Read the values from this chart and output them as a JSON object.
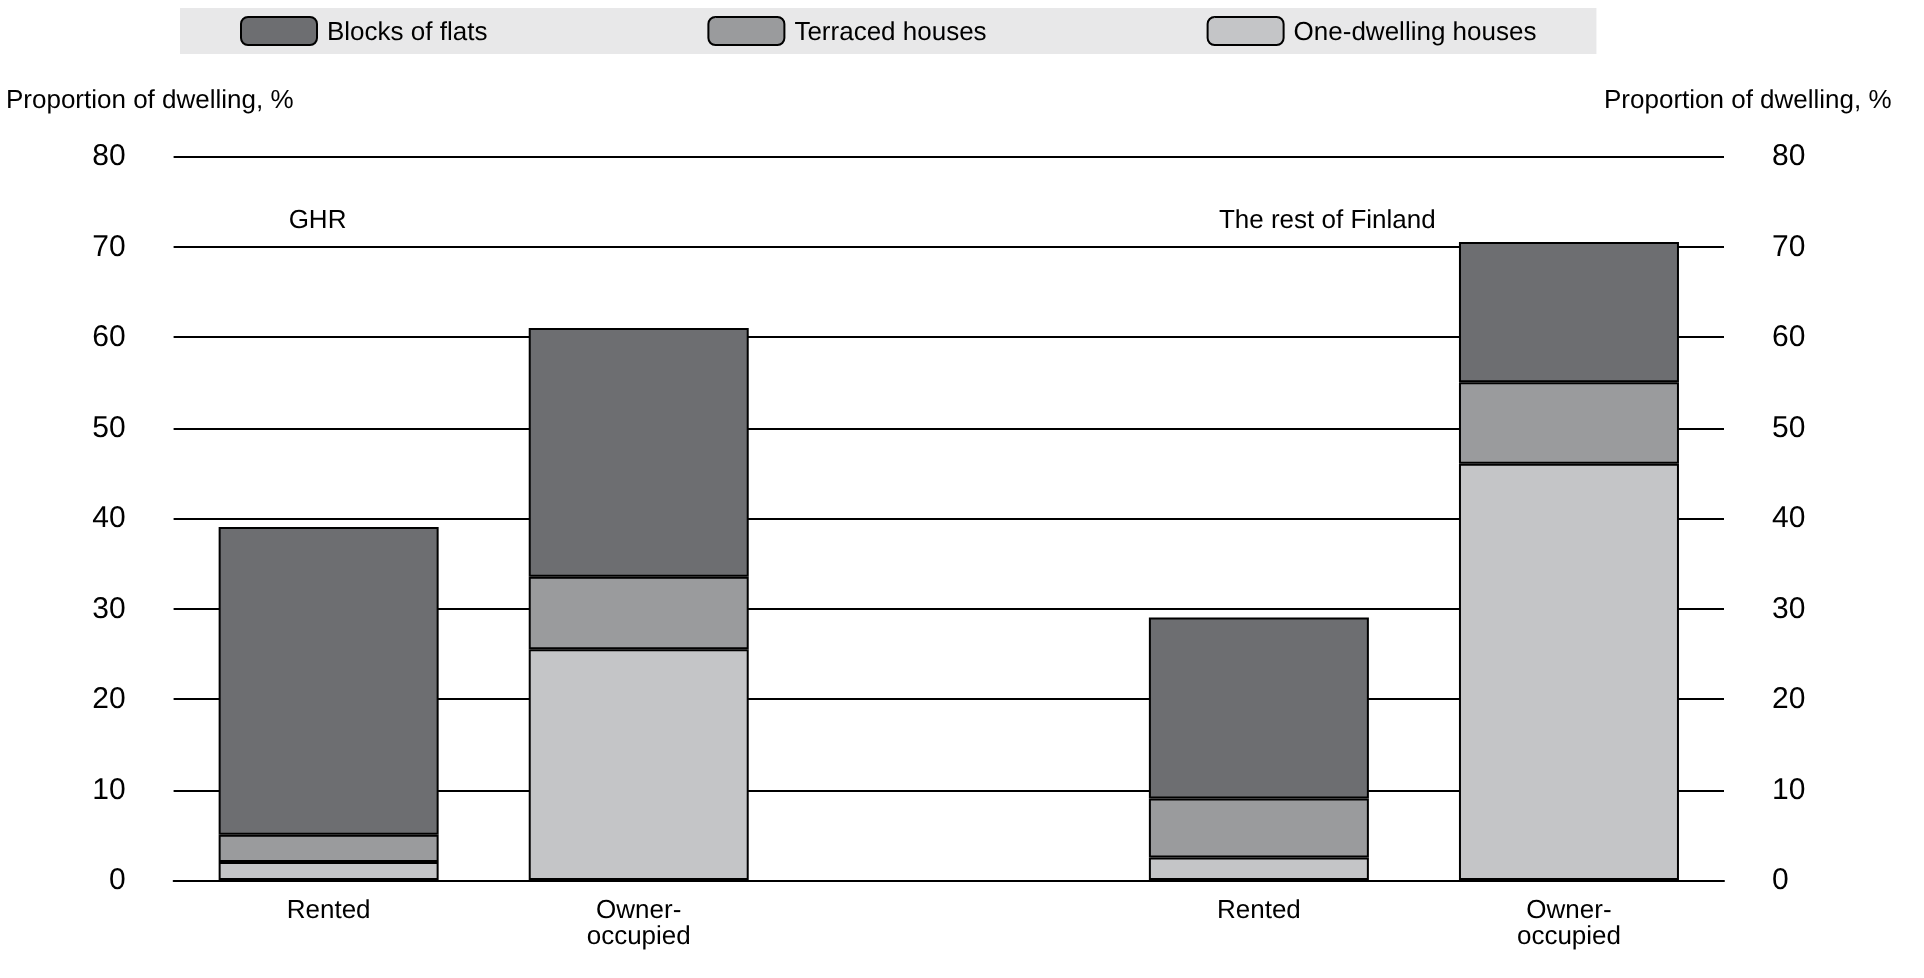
{
  "chart_data": {
    "type": "bar",
    "stacked": true,
    "categories": [
      "Rented",
      "Owner-occupied",
      null,
      "Rented",
      "Owner-occupied"
    ],
    "series": [
      {
        "name": "One-dwelling houses",
        "color": "#c4c5c7",
        "values": [
          2,
          25.5,
          null,
          2.5,
          46
        ]
      },
      {
        "name": "Terraced houses",
        "color": "#9a9b9d",
        "values": [
          3,
          8,
          null,
          6.5,
          9
        ]
      },
      {
        "name": "Blocks of flats",
        "color": "#6d6e71",
        "values": [
          34,
          27.5,
          null,
          20,
          15.5
        ]
      }
    ],
    "ylabel": "Proportion of dwelling, %",
    "y2label": "Proportion of dwelling, %",
    "ylim": [
      0,
      80
    ],
    "yticks": [
      0,
      10,
      20,
      30,
      40,
      50,
      60,
      70,
      80
    ],
    "y2lim": [
      0,
      80
    ],
    "y2ticks": [
      0,
      10,
      20,
      30,
      40,
      50,
      60,
      70,
      80
    ],
    "annotations": [
      "GHR",
      "The rest of Finland"
    ],
    "grid": "y",
    "legend": "top"
  }
}
